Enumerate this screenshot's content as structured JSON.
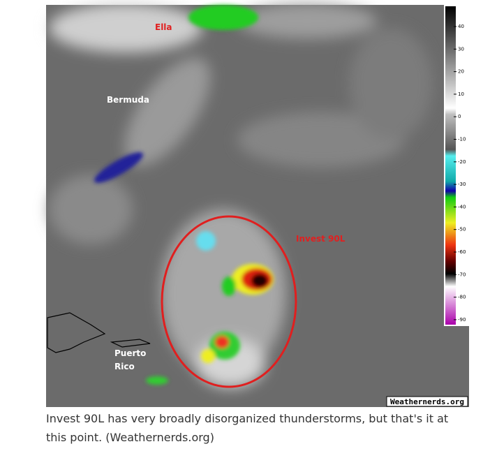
{
  "image": {
    "labels": {
      "ella": "Ella",
      "bermuda": "Bermuda",
      "invest": "Invest 90L",
      "puerto_rico": [
        "Puerto",
        "Rico"
      ],
      "credit": "Weathernerds.org"
    },
    "colorbar_ticks": [
      40,
      30,
      20,
      10,
      0,
      -10,
      -20,
      -30,
      -40,
      -50,
      -60,
      -70,
      -80,
      -90
    ]
  },
  "caption": "Invest 90L has very broadly disorganized thunderstorms, but that's it at this point. (Weathernerds.org)"
}
